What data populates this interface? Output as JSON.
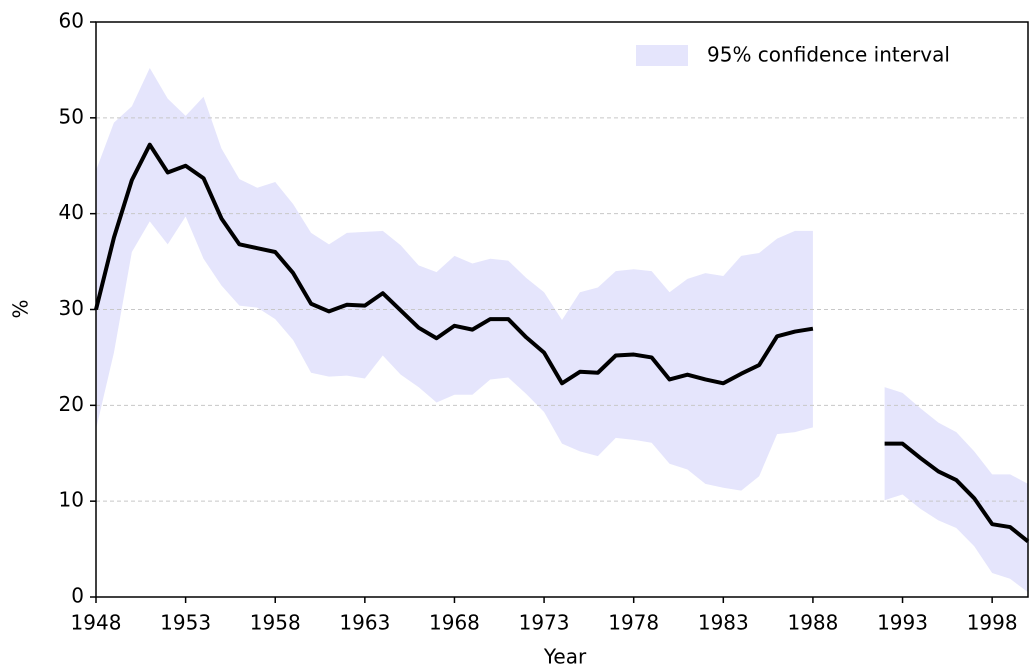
{
  "chart_data": {
    "type": "line",
    "x": [
      1948,
      1949,
      1950,
      1951,
      1952,
      1953,
      1954,
      1955,
      1956,
      1957,
      1958,
      1959,
      1960,
      1961,
      1962,
      1963,
      1964,
      1965,
      1966,
      1967,
      1968,
      1969,
      1970,
      1971,
      1972,
      1973,
      1974,
      1975,
      1976,
      1977,
      1978,
      1979,
      1980,
      1981,
      1982,
      1983,
      1984,
      1985,
      1986,
      1987,
      1988,
      1989,
      1990,
      1991,
      1992,
      1993,
      1994,
      1995,
      1996,
      1997,
      1998,
      1999,
      2000
    ],
    "series": [
      {
        "color": "#000000",
        "values": [
          30,
          37.5,
          43.5,
          47.2,
          44.3,
          45,
          43.7,
          39.5,
          36.8,
          36.4,
          36,
          33.8,
          30.6,
          29.8,
          30.5,
          30.4,
          31.7,
          29.9,
          28.1,
          27,
          28.3,
          27.9,
          29,
          29,
          27.1,
          25.5,
          22.3,
          23.5,
          23.4,
          25.2,
          25.3,
          25,
          22.7,
          23.2,
          22.7,
          22.3,
          23.3,
          24.2,
          27.2,
          27.7,
          28,
          null,
          null,
          null,
          16,
          16,
          14.5,
          13.1,
          12.2,
          10.3,
          7.6,
          7.3,
          5.8
        ]
      }
    ],
    "band": {
      "name": "95% confidence interval",
      "color": "#e5e5fc",
      "upper": [
        44.5,
        49.5,
        51.2,
        55.2,
        52,
        50.2,
        52.2,
        46.8,
        43.6,
        42.7,
        43.3,
        41,
        38,
        36.8,
        38,
        38.1,
        38.2,
        36.7,
        34.6,
        33.9,
        35.6,
        34.8,
        35.3,
        35.1,
        33.3,
        31.8,
        28.9,
        31.8,
        32.3,
        34,
        34.2,
        34,
        31.8,
        33.2,
        33.8,
        33.5,
        35.6,
        35.9,
        37.4,
        38.2,
        38.2,
        null,
        null,
        null,
        21.9,
        21.3,
        19.7,
        18.2,
        17.2,
        15.2,
        12.8,
        12.8,
        11.8
      ],
      "lower": [
        17.5,
        25.5,
        36,
        39.2,
        36.8,
        39.7,
        35.3,
        32.5,
        30.4,
        30.2,
        29,
        26.8,
        23.4,
        23,
        23.1,
        22.8,
        25.2,
        23.2,
        21.9,
        20.3,
        21.1,
        21.1,
        22.7,
        22.9,
        21.2,
        19.3,
        16,
        15.2,
        14.7,
        16.6,
        16.4,
        16.1,
        13.9,
        13.3,
        11.8,
        11.4,
        11.1,
        12.6,
        17,
        17.2,
        17.7,
        null,
        null,
        null,
        10.1,
        10.7,
        9.2,
        8,
        7.2,
        5.3,
        2.5,
        1.9,
        0.5
      ]
    },
    "xlabel": "Year",
    "ylabel": "%",
    "xlim": [
      1948,
      2000
    ],
    "xticks": [
      1948,
      1953,
      1958,
      1963,
      1968,
      1973,
      1978,
      1983,
      1988,
      1993,
      1998
    ],
    "ylim": [
      0,
      60
    ],
    "yticks": [
      0,
      10,
      20,
      30,
      40,
      50,
      60
    ],
    "grid": true,
    "legend": "upper right"
  }
}
